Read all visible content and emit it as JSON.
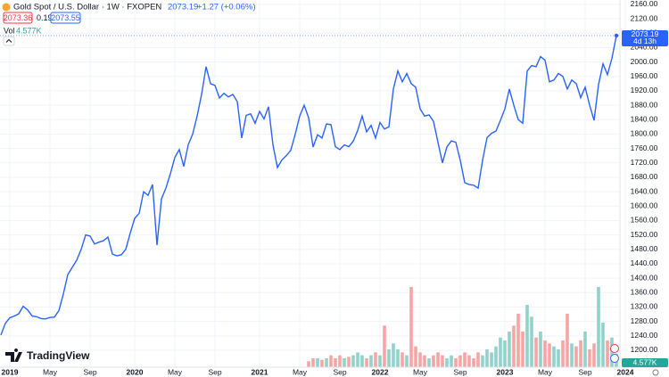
{
  "chart_data": {
    "type": "line",
    "title": "Gold Spot / U.S. Dollar · 1W · FXOPEN",
    "change": "+1.27 (+0.06%)",
    "bid": "2073.36",
    "spread": "0.19",
    "ask": "2073.55",
    "countdown": "4d 13h",
    "brand": "TradingView",
    "color": "#2962ff",
    "categories": [
      null,
      null,
      "2019",
      null,
      null,
      null,
      null,
      null,
      null,
      null,
      null,
      "May",
      null,
      null,
      null,
      null,
      null,
      null,
      null,
      null,
      "Sep",
      null,
      null,
      null,
      null,
      null,
      null,
      null,
      null,
      null,
      "2020",
      null,
      null,
      null,
      null,
      null,
      null,
      null,
      null,
      "May",
      null,
      null,
      null,
      null,
      null,
      null,
      null,
      null,
      "Sep",
      null,
      null,
      null,
      null,
      null,
      null,
      null,
      null,
      null,
      "2021",
      null,
      null,
      null,
      null,
      null,
      null,
      null,
      null,
      "May",
      null,
      null,
      null,
      null,
      null,
      null,
      null,
      null,
      "Sep",
      null,
      null,
      null,
      null,
      null,
      null,
      null,
      null,
      "2022",
      null,
      null,
      null,
      null,
      null,
      null,
      null,
      null,
      "May",
      null,
      null,
      null,
      null,
      null,
      null,
      null,
      null,
      "Sep",
      null,
      null,
      null,
      null,
      null,
      null,
      null,
      null,
      null,
      "2023",
      null,
      null,
      null,
      null,
      null,
      null,
      null,
      null,
      "May",
      null,
      null,
      null,
      null,
      null,
      null,
      null,
      null,
      "Sep",
      null,
      null,
      null,
      null,
      null,
      null,
      null,
      null,
      "2024"
    ],
    "values": [
      1242,
      1275,
      1290,
      1295,
      1301,
      1322,
      1312,
      1295,
      1293,
      1288,
      1287,
      1291,
      1292,
      1310,
      1356,
      1410,
      1430,
      1450,
      1480,
      1520,
      1517,
      1495,
      1500,
      1504,
      1514,
      1467,
      1462,
      1465,
      1480,
      1525,
      1566,
      1580,
      1640,
      1630,
      1660,
      1492,
      1620,
      1650,
      1690,
      1735,
      1757,
      1710,
      1770,
      1800,
      1850,
      1910,
      1987,
      1940,
      1935,
      1900,
      1913,
      1903,
      1910,
      1890,
      1789,
      1852,
      1856,
      1830,
      1863,
      1842,
      1876,
      1770,
      1707,
      1728,
      1740,
      1755,
      1800,
      1850,
      1880,
      1845,
      1764,
      1798,
      1789,
      1828,
      1826,
      1765,
      1757,
      1770,
      1765,
      1780,
      1810,
      1850,
      1806,
      1824,
      1789,
      1832,
      1814,
      1820,
      1925,
      1975,
      1945,
      1968,
      1940,
      1930,
      1870,
      1850,
      1853,
      1835,
      1777,
      1720,
      1764,
      1781,
      1777,
      1727,
      1665,
      1660,
      1658,
      1650,
      1727,
      1790,
      1802,
      1808,
      1838,
      1870,
      1925,
      1880,
      1840,
      1830,
      1975,
      1990,
      1987,
      2015,
      2005,
      1945,
      1950,
      1968,
      1960,
      1925,
      1950,
      1940,
      1901,
      1930,
      1880,
      1838,
      1937,
      1995,
      1965,
      2010,
      2073.19,
      null,
      null
    ],
    "volume": {
      "label": "Vol",
      "last": "4.577K",
      "up_color": "#92d2cc",
      "down_color": "#f5a6a4",
      "values": [
        null,
        null,
        null,
        null,
        null,
        null,
        null,
        null,
        null,
        null,
        null,
        null,
        null,
        null,
        null,
        null,
        null,
        null,
        null,
        null,
        null,
        null,
        null,
        null,
        null,
        null,
        null,
        null,
        null,
        null,
        null,
        null,
        null,
        null,
        null,
        null,
        null,
        null,
        null,
        null,
        null,
        null,
        null,
        null,
        null,
        null,
        null,
        null,
        null,
        null,
        null,
        null,
        null,
        null,
        null,
        null,
        null,
        null,
        null,
        null,
        null,
        null,
        null,
        null,
        null,
        null,
        null,
        null,
        null,
        2,
        3,
        3,
        2.5,
        3,
        4,
        3,
        4,
        3,
        3.5,
        4,
        5,
        4,
        3,
        4,
        5,
        4,
        14,
        6,
        8,
        6,
        5,
        4,
        27,
        7,
        5,
        4,
        3,
        4,
        5,
        4,
        3,
        4,
        3,
        4,
        5,
        4,
        3,
        5,
        4,
        6,
        5,
        7,
        10,
        9,
        12,
        14,
        18,
        12,
        21,
        17,
        10,
        12,
        9,
        8,
        7,
        6,
        9,
        18,
        8,
        7,
        9,
        12,
        6,
        8,
        27,
        15,
        9,
        10,
        4.577,
        null,
        null
      ]
    },
    "ylim": [
      1153,
      2172
    ],
    "yticks": [
      {
        "value": 1200,
        "label": "1200.00"
      },
      {
        "value": 1240,
        "label": "1240.00"
      },
      {
        "value": 1280,
        "label": "1280.00"
      },
      {
        "value": 1320,
        "label": "1320.00"
      },
      {
        "value": 1360,
        "label": "1360.00"
      },
      {
        "value": 1400,
        "label": "1400.00"
      },
      {
        "value": 1440,
        "label": "1440.00"
      },
      {
        "value": 1480,
        "label": "1480.00"
      },
      {
        "value": 1520,
        "label": "1520.00"
      },
      {
        "value": 1560,
        "label": "1560.00"
      },
      {
        "value": 1600,
        "label": "1600.00"
      },
      {
        "value": 1640,
        "label": "1640.00"
      },
      {
        "value": 1680,
        "label": "1680.00"
      },
      {
        "value": 1720,
        "label": "1720.00"
      },
      {
        "value": 1760,
        "label": "1760.00"
      },
      {
        "value": 1800,
        "label": "1800.00"
      },
      {
        "value": 1840,
        "label": "1840.00"
      },
      {
        "value": 1880,
        "label": "1880.00"
      },
      {
        "value": 1920,
        "label": "1920.00"
      },
      {
        "value": 1960,
        "label": "1960.00"
      },
      {
        "value": 2000,
        "label": "2000.00"
      },
      {
        "value": 2040,
        "label": "2040.00"
      },
      {
        "value": 2080,
        "label": "2080.00"
      },
      {
        "value": 2120,
        "label": "2120.00"
      },
      {
        "value": 2160,
        "label": "2160.00"
      }
    ],
    "grid": true
  }
}
